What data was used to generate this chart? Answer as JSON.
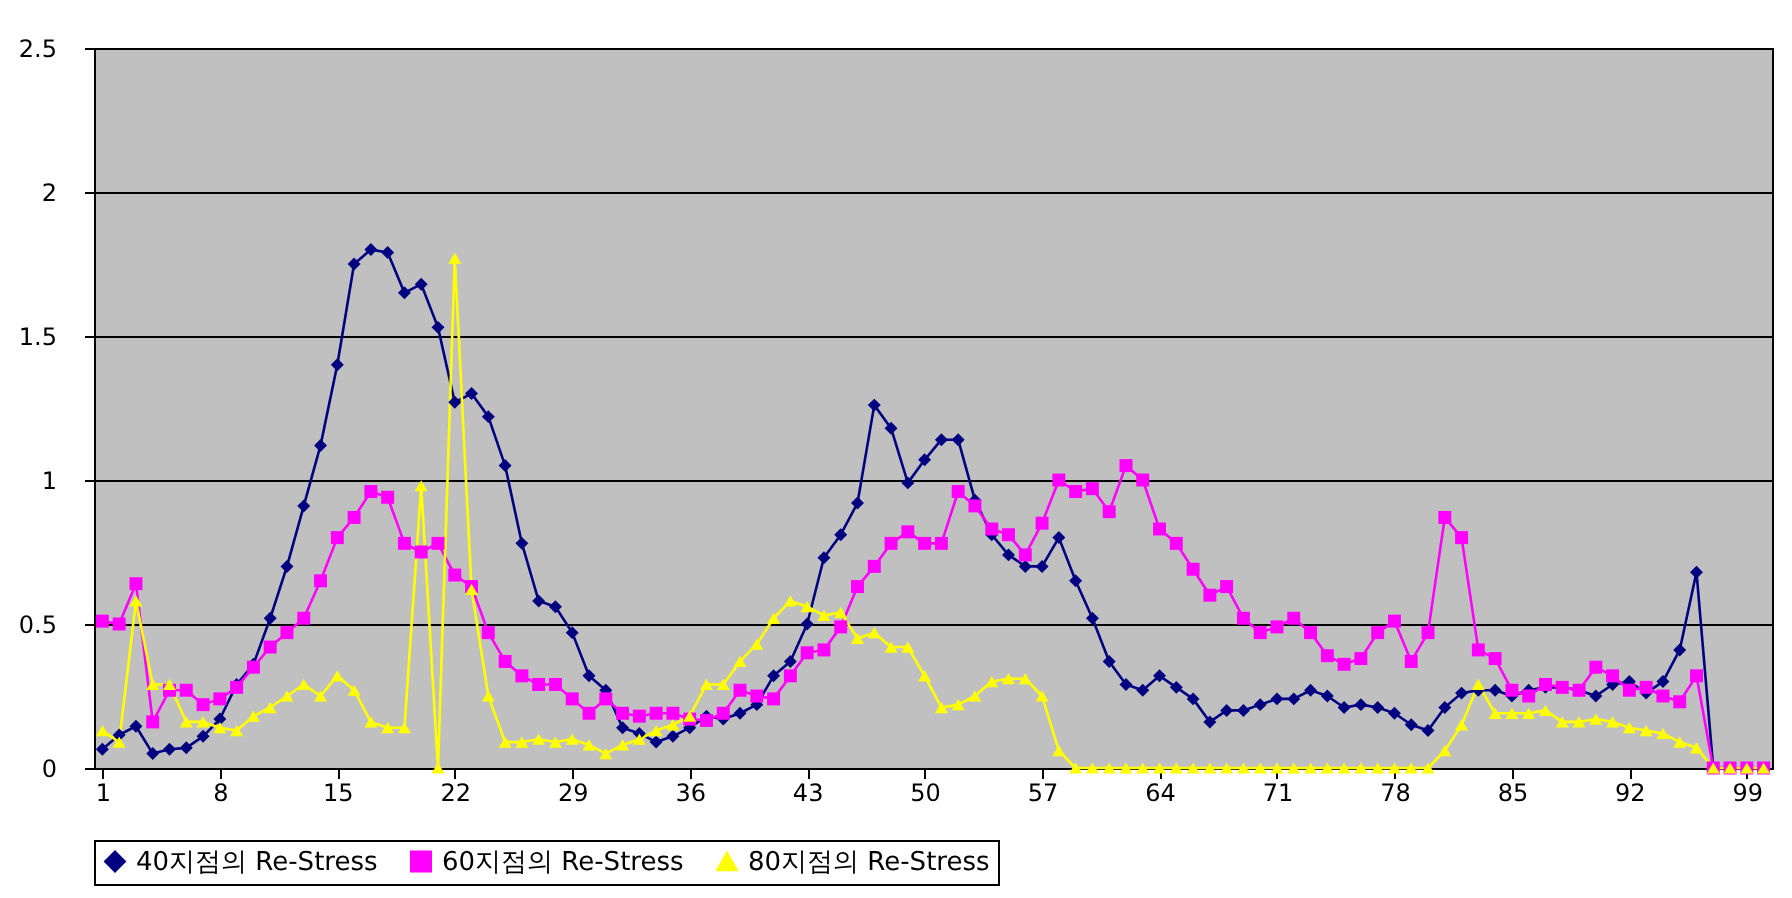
{
  "chart_data": {
    "type": "line",
    "x": [
      1,
      2,
      3,
      4,
      5,
      6,
      7,
      8,
      9,
      10,
      11,
      12,
      13,
      14,
      15,
      16,
      17,
      18,
      19,
      20,
      21,
      22,
      23,
      24,
      25,
      26,
      27,
      28,
      29,
      30,
      31,
      32,
      33,
      34,
      35,
      36,
      37,
      38,
      39,
      40,
      41,
      42,
      43,
      44,
      45,
      46,
      47,
      48,
      49,
      50,
      51,
      52,
      53,
      54,
      55,
      56,
      57,
      58,
      59,
      60,
      61,
      62,
      63,
      64,
      65,
      66,
      67,
      68,
      69,
      70,
      71,
      72,
      73,
      74,
      75,
      76,
      77,
      78,
      79,
      80,
      81,
      82,
      83,
      84,
      85,
      86,
      87,
      88,
      89,
      90,
      91,
      92,
      93,
      94,
      95,
      96,
      97,
      98,
      99,
      100
    ],
    "xlim": [
      0.5,
      100.5
    ],
    "xticks": [
      1,
      8,
      15,
      22,
      29,
      36,
      43,
      50,
      57,
      64,
      71,
      78,
      85,
      92,
      99
    ],
    "ylim": [
      0,
      2.5
    ],
    "yticks": [
      0,
      0.5,
      1,
      1.5,
      2,
      2.5
    ],
    "grid": "y",
    "legend": "bottom",
    "line_style": "solid",
    "series": [
      {
        "name": "40지점의 Re-Stress",
        "color": "#000080",
        "marker": "diamond",
        "values": [
          0.065,
          0.115,
          0.145,
          0.05,
          0.065,
          0.07,
          0.11,
          0.17,
          0.29,
          0.36,
          0.52,
          0.7,
          0.91,
          1.12,
          1.4,
          1.75,
          1.8,
          1.79,
          1.65,
          1.68,
          1.53,
          1.27,
          1.3,
          1.22,
          1.05,
          0.78,
          0.58,
          0.56,
          0.47,
          0.32,
          0.27,
          0.14,
          0.12,
          0.09,
          0.11,
          0.14,
          0.18,
          0.17,
          0.19,
          0.22,
          0.32,
          0.37,
          0.5,
          0.73,
          0.81,
          0.92,
          1.26,
          1.18,
          0.99,
          1.07,
          1.14,
          1.14,
          0.93,
          0.81,
          0.74,
          0.7,
          0.7,
          0.8,
          0.65,
          0.52,
          0.37,
          0.29,
          0.27,
          0.32,
          0.28,
          0.24,
          0.16,
          0.2,
          0.2,
          0.22,
          0.24,
          0.24,
          0.27,
          0.25,
          0.21,
          0.22,
          0.21,
          0.19,
          0.15,
          0.13,
          0.21,
          0.26,
          0.27,
          0.27,
          0.25,
          0.27,
          0.28,
          0.28,
          0.27,
          0.25,
          0.29,
          0.3,
          0.26,
          0.3,
          0.41,
          0.68,
          0,
          0,
          null,
          null
        ]
      },
      {
        "name": "60지점의 Re-Stress",
        "color": "#ff00ff",
        "marker": "square",
        "values": [
          0.51,
          0.5,
          0.64,
          0.16,
          0.27,
          0.27,
          0.22,
          0.24,
          0.28,
          0.35,
          0.42,
          0.47,
          0.52,
          0.65,
          0.8,
          0.87,
          0.96,
          0.94,
          0.78,
          0.75,
          0.78,
          0.67,
          0.63,
          0.47,
          0.37,
          0.32,
          0.29,
          0.29,
          0.24,
          0.19,
          0.24,
          0.19,
          0.18,
          0.19,
          0.19,
          0.17,
          0.165,
          0.19,
          0.27,
          0.25,
          0.24,
          0.32,
          0.4,
          0.41,
          0.49,
          0.63,
          0.7,
          0.78,
          0.82,
          0.78,
          0.78,
          0.96,
          0.91,
          0.83,
          0.81,
          0.74,
          0.85,
          1.0,
          0.96,
          0.97,
          0.89,
          1.05,
          1.0,
          0.83,
          0.78,
          0.69,
          0.6,
          0.63,
          0.52,
          0.47,
          0.49,
          0.52,
          0.47,
          0.39,
          0.36,
          0.38,
          0.47,
          0.51,
          0.37,
          0.47,
          0.87,
          0.8,
          0.41,
          0.38,
          0.27,
          0.25,
          0.29,
          0.28,
          0.27,
          0.35,
          0.32,
          0.27,
          0.28,
          0.25,
          0.23,
          0.32,
          0,
          0,
          0,
          0
        ]
      },
      {
        "name": "80지점의 Re-Stress",
        "color": "#ffff00",
        "marker": "triangle",
        "values": [
          0.13,
          0.09,
          0.58,
          0.29,
          0.29,
          0.16,
          0.16,
          0.14,
          0.13,
          0.18,
          0.21,
          0.25,
          0.29,
          0.25,
          0.32,
          0.27,
          0.16,
          0.14,
          0.14,
          0.98,
          0,
          1.77,
          0.62,
          0.25,
          0.09,
          0.09,
          0.1,
          0.09,
          0.1,
          0.08,
          0.05,
          0.08,
          0.1,
          0.13,
          0.15,
          0.18,
          0.29,
          0.29,
          0.37,
          0.43,
          0.52,
          0.58,
          0.56,
          0.53,
          0.54,
          0.45,
          0.47,
          0.42,
          0.42,
          0.32,
          0.21,
          0.22,
          0.25,
          0.3,
          0.31,
          0.31,
          0.25,
          0.06,
          0,
          0,
          0,
          0,
          0,
          0,
          0,
          0,
          0,
          0,
          0,
          0,
          0,
          0,
          0,
          0,
          0,
          0,
          0,
          0,
          0,
          0,
          0.06,
          0.15,
          0.29,
          0.19,
          0.19,
          0.19,
          0.2,
          0.16,
          0.16,
          0.17,
          0.16,
          0.14,
          0.13,
          0.12,
          0.09,
          0.07,
          0,
          0,
          0,
          0
        ]
      }
    ]
  }
}
